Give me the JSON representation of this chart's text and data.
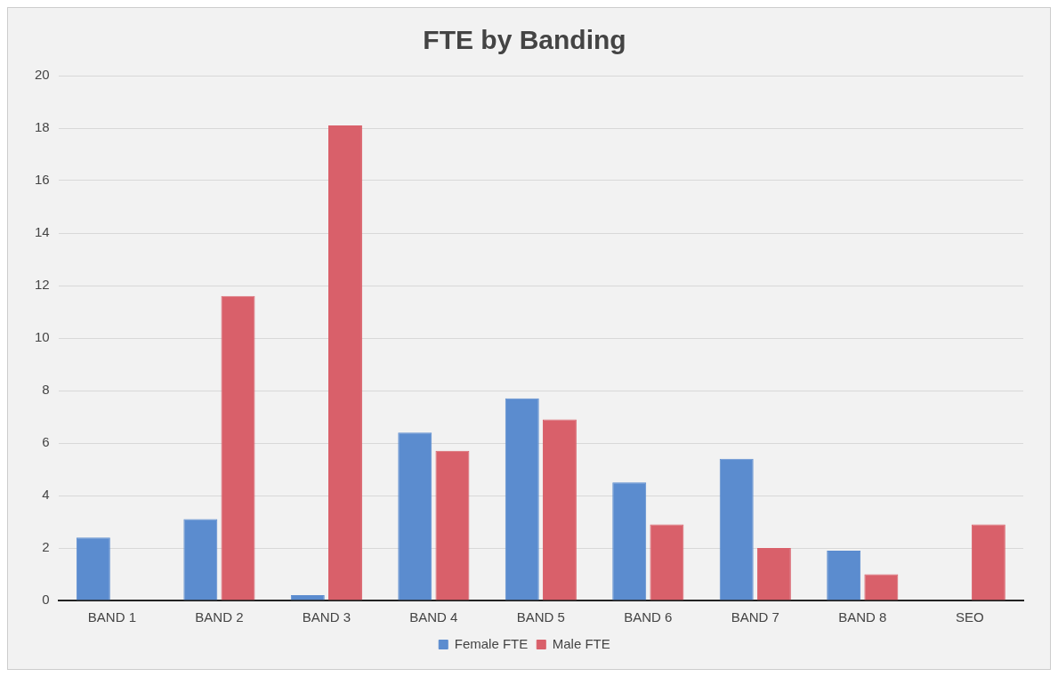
{
  "chart_data": {
    "type": "bar",
    "title": "FTE by Banding",
    "categories": [
      "BAND 1",
      "BAND 2",
      "BAND 3",
      "BAND 4",
      "BAND 5",
      "BAND 6",
      "BAND 7",
      "BAND 8",
      "SEO"
    ],
    "series": [
      {
        "name": "Female FTE",
        "color": "#5b8ccf",
        "values": [
          2.4,
          3.1,
          0.2,
          6.4,
          7.7,
          4.5,
          5.4,
          1.9,
          0
        ]
      },
      {
        "name": "Male FTE",
        "color": "#d9606a",
        "values": [
          0,
          11.6,
          18.1,
          5.7,
          6.9,
          2.9,
          2.0,
          1.0,
          2.9
        ]
      }
    ],
    "ylim": [
      0,
      20
    ],
    "yticks": [
      0,
      2,
      4,
      6,
      8,
      10,
      12,
      14,
      16,
      18,
      20
    ],
    "grid": "y",
    "legend": "bottom"
  }
}
